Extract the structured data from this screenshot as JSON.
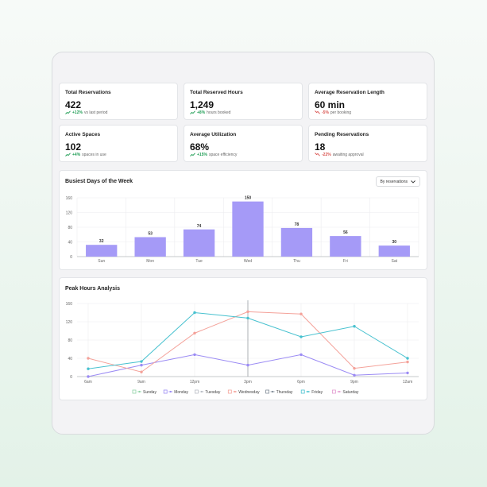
{
  "stats": [
    {
      "label": "Total Reservations",
      "value": "422",
      "delta": "+12%",
      "note": "vs last period",
      "dir": "up"
    },
    {
      "label": "Total Reserved Hours",
      "value": "1,249",
      "delta": "+8%",
      "note": "hours booked",
      "dir": "up"
    },
    {
      "label": "Average Reservation Length",
      "value": "60 min",
      "delta": "-5%",
      "note": "per booking",
      "dir": "down"
    },
    {
      "label": "Active Spaces",
      "value": "102",
      "delta": "+4%",
      "note": "spaces in use",
      "dir": "up"
    },
    {
      "label": "Average Utilization",
      "value": "68%",
      "delta": "+15%",
      "note": "space efficiency",
      "dir": "up"
    },
    {
      "label": "Pending Reservations",
      "value": "18",
      "delta": "-22%",
      "note": "awaiting approval",
      "dir": "down"
    }
  ],
  "colors": {
    "up": "#1f9d55",
    "down": "#d9534f",
    "bar": "#a59af7"
  },
  "icons": {
    "up": "trending-up-icon",
    "down": "trending-down-icon",
    "dropdown": "chevron-down-icon"
  },
  "busiest": {
    "title": "Busiest Days of the Week",
    "dropdown_label": "By reservations"
  },
  "peak": {
    "title": "Peak Hours Analysis"
  },
  "chart_data": [
    {
      "type": "bar",
      "title": "Busiest Days of the Week",
      "categories": [
        "Sun",
        "Mon",
        "Tue",
        "Wed",
        "Thu",
        "Fri",
        "Sat"
      ],
      "values": [
        32,
        53,
        74,
        150,
        78,
        56,
        30
      ],
      "ylim": [
        0,
        160
      ],
      "yticks": [
        0,
        40,
        80,
        120,
        160
      ],
      "grid": true
    },
    {
      "type": "line",
      "title": "Peak Hours Analysis",
      "categories": [
        "6am",
        "9am",
        "12pm",
        "3pm",
        "6pm",
        "9pm",
        "12am"
      ],
      "ylim": [
        0,
        160
      ],
      "yticks": [
        0,
        40,
        80,
        120,
        160
      ],
      "grid": true,
      "legend": "bottom",
      "series": [
        {
          "name": "Sunday",
          "color": "#8fd3a6",
          "values": [
            null,
            null,
            null,
            null,
            null,
            null,
            null
          ]
        },
        {
          "name": "Monday",
          "color": "#9b8bf4",
          "values": [
            0,
            25,
            48,
            25,
            48,
            3,
            8
          ]
        },
        {
          "name": "Tuesday",
          "color": "#b9bdc5",
          "values": [
            null,
            null,
            null,
            null,
            null,
            null,
            null
          ]
        },
        {
          "name": "Wednesday",
          "color": "#f4a29a",
          "values": [
            40,
            10,
            95,
            142,
            137,
            18,
            32
          ]
        },
        {
          "name": "Thursday",
          "color": "#7f8a96",
          "values": [
            null,
            null,
            null,
            null,
            null,
            null,
            null
          ]
        },
        {
          "name": "Friday",
          "color": "#47c1cf",
          "values": [
            17,
            33,
            140,
            128,
            87,
            110,
            40
          ]
        },
        {
          "name": "Saturday",
          "color": "#e39ad0",
          "values": [
            null,
            null,
            null,
            null,
            null,
            null,
            null
          ]
        }
      ]
    }
  ]
}
